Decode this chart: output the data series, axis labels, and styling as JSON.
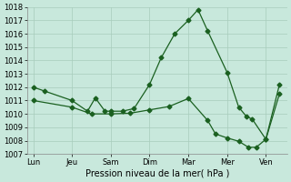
{
  "title": "Pression niveau de la mer( hPa )",
  "bg_color": "#c8e8dc",
  "grid_color": "#a8ccbc",
  "line_color": "#1a6020",
  "ylim": [
    1007,
    1018
  ],
  "yticks": [
    1007,
    1008,
    1009,
    1010,
    1011,
    1012,
    1013,
    1014,
    1015,
    1016,
    1017,
    1018
  ],
  "xtick_labels": [
    "Lun",
    "Jeu",
    "Sam",
    "Dim",
    "Mar",
    "Mer",
    "Ven"
  ],
  "xtick_positions": [
    0,
    1,
    2,
    3,
    4,
    5,
    6
  ],
  "line1_x": [
    0,
    0.3,
    1.0,
    1.4,
    1.6,
    1.85,
    2.0,
    2.3,
    2.6,
    3.0,
    3.3,
    3.65,
    4.0,
    4.25,
    4.5,
    5.0,
    5.3,
    5.5,
    5.65,
    6.0,
    6.35
  ],
  "line1_y": [
    1012.0,
    1011.7,
    1011.0,
    1010.2,
    1011.2,
    1010.2,
    1010.2,
    1010.2,
    1010.4,
    1012.2,
    1014.2,
    1016.0,
    1017.0,
    1017.8,
    1016.2,
    1013.1,
    1010.5,
    1009.8,
    1009.6,
    1008.1,
    1012.2
  ],
  "line2_x": [
    0,
    1.0,
    1.5,
    2.0,
    2.5,
    3.0,
    3.5,
    4.0,
    4.5,
    4.7,
    5.0,
    5.3,
    5.55,
    5.75,
    6.0,
    6.35
  ],
  "line2_y": [
    1011.0,
    1010.5,
    1010.0,
    1010.0,
    1010.05,
    1010.3,
    1010.55,
    1011.15,
    1009.5,
    1008.5,
    1008.2,
    1007.95,
    1007.5,
    1007.5,
    1008.1,
    1011.5
  ],
  "spine_color": "#888888",
  "label_fontsize": 6,
  "xlabel_fontsize": 7,
  "marker_size": 2.5,
  "line_width": 0.9
}
